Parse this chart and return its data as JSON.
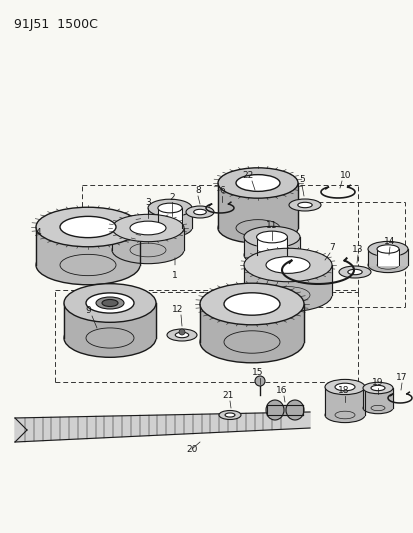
{
  "title": "91J51  1500C",
  "bg_color": "#f5f5f0",
  "line_color": "#1a1a1a",
  "fig_width": 4.14,
  "fig_height": 5.33,
  "dpi": 100
}
